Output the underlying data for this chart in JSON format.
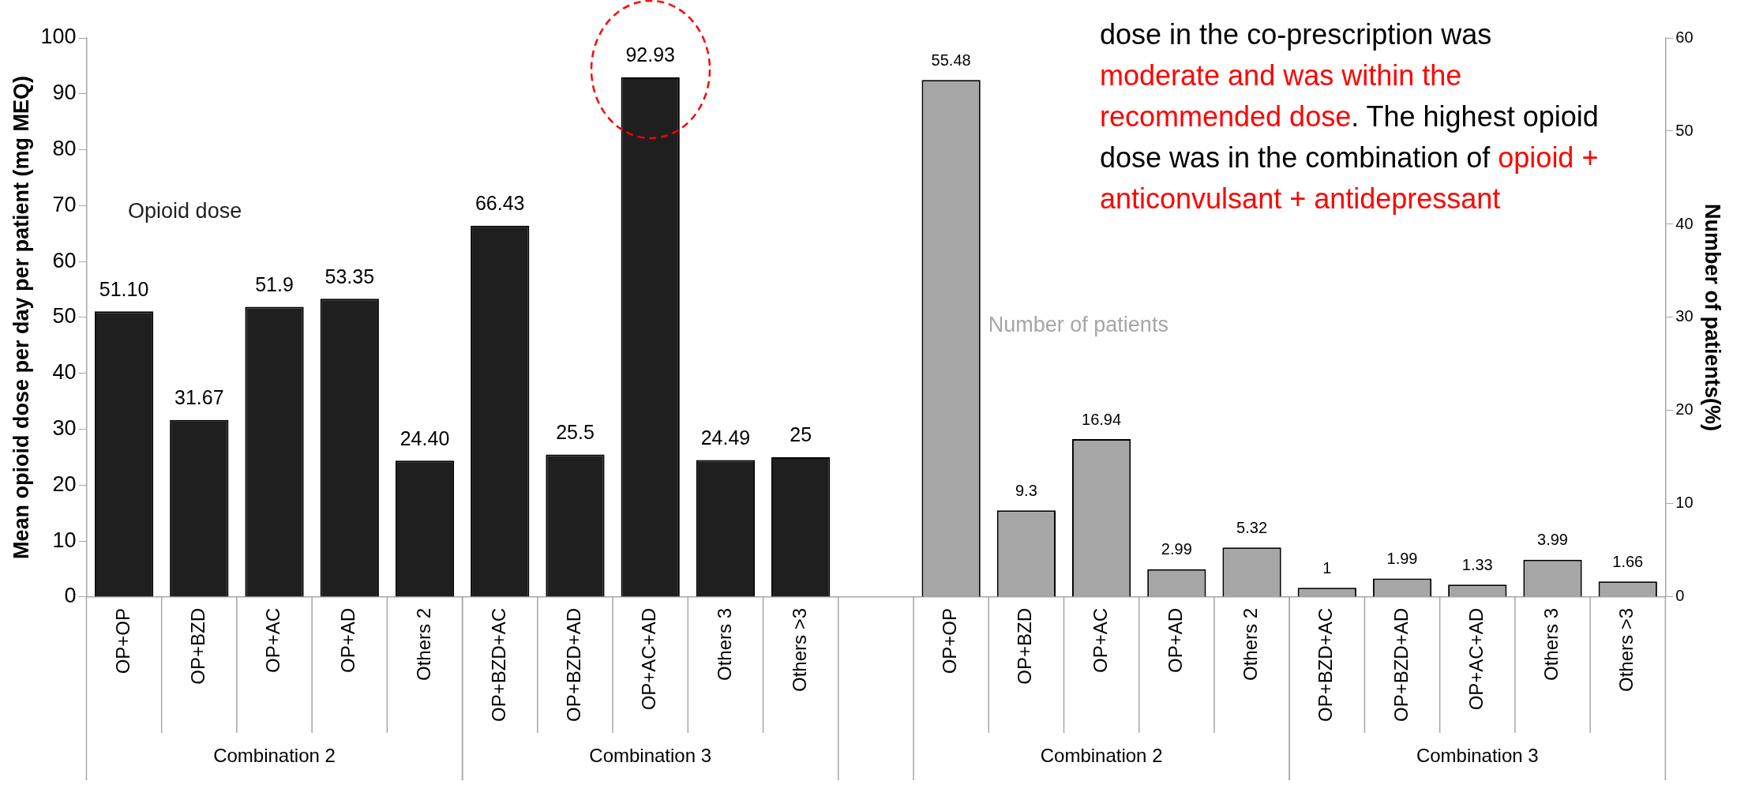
{
  "chart_data": {
    "type": "bar",
    "ylabel": "Mean opioid dose per day per patient (mg MEQ)",
    "y2label": "Number of patients(%)",
    "categories": [
      "OP+OP",
      "OP+BZD",
      "OP+AC",
      "OP+AD",
      "Others 2",
      "OP+BZD+AC",
      "OP+BZD+AD",
      "OP+AC+AD",
      "Others 3",
      "Others >3",
      null,
      "OP+OP",
      "OP+BZD",
      "OP+AC",
      "OP+AD",
      "Others 2",
      "OP+BZD+AC",
      "OP+BZD+AD",
      "OP+AC+AD",
      "Others 3",
      "Others >3"
    ],
    "series": [
      {
        "name": "Opioid dose",
        "color": "#1f1f1f",
        "values": [
          51.1,
          31.67,
          51.9,
          53.35,
          24.4,
          66.43,
          25.5,
          92.93,
          24.49,
          25,
          null,
          null,
          null,
          null,
          null,
          null,
          null,
          null,
          null,
          null,
          null
        ],
        "value_labels": [
          "51.10",
          "31.67",
          "51.9",
          "53.35",
          "24.40",
          "66.43",
          "25.5",
          "92.93",
          "24.49",
          "25",
          null,
          null,
          null,
          null,
          null,
          null,
          null,
          null,
          null,
          null,
          null
        ]
      },
      {
        "name": "Number of patients",
        "color": "#a6a6a6",
        "axis": "y2",
        "values": [
          null,
          null,
          null,
          null,
          null,
          null,
          null,
          null,
          null,
          null,
          null,
          55.48,
          9.3,
          16.94,
          2.99,
          5.32,
          1,
          1.99,
          1.33,
          3.99,
          1.66
        ],
        "value_labels": [
          null,
          null,
          null,
          null,
          null,
          null,
          null,
          null,
          null,
          null,
          null,
          "55.48",
          "9.3",
          "16.94",
          "2.99",
          "5.32",
          "1",
          "1.99",
          "1.33",
          "3.99",
          "1.66"
        ]
      }
    ],
    "ylim": [
      0,
      100
    ],
    "yticks": [
      0,
      10,
      20,
      30,
      40,
      50,
      60,
      70,
      80,
      90,
      100
    ],
    "y2lim": [
      0,
      60
    ],
    "y2ticks": [
      0,
      10,
      20,
      30,
      40,
      50,
      60
    ],
    "grid": false,
    "legend": false,
    "annotations": [
      "Combination 2",
      "Combination 3",
      "Combination 2",
      "Combination 3",
      "dose in the co-prescription was ",
      "moderate and was within the recommended dose",
      ". The highest opioid dose was in the combination of ",
      "opioid + anticonvulsant + antidepressant"
    ]
  }
}
